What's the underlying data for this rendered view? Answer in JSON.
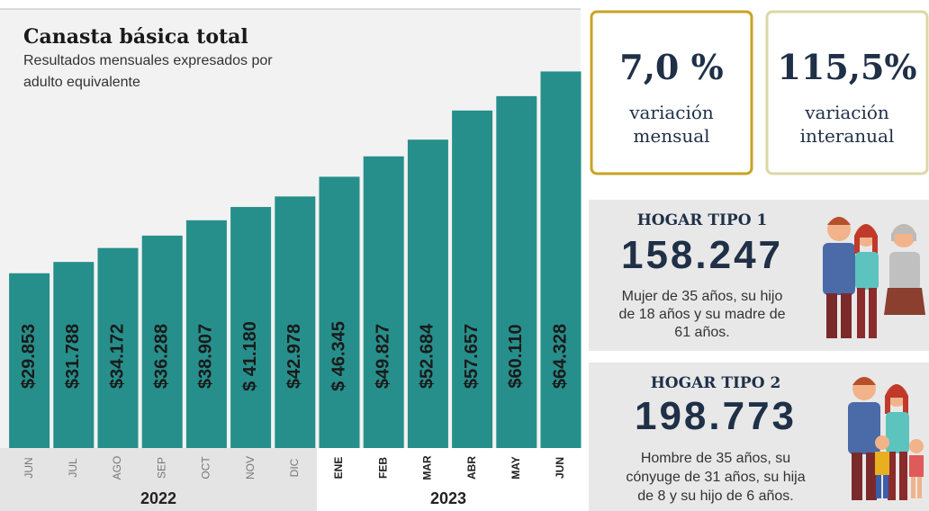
{
  "chart_data": {
    "type": "bar",
    "title": "Canasta básica total",
    "subtitle": [
      "Resultados mensuales expresados por",
      "adulto equivalente"
    ],
    "categories": [
      "JUN",
      "JUL",
      "AGO",
      "SEP",
      "OCT",
      "NOV",
      "DIC",
      "ENE",
      "FEB",
      "MAR",
      "ABR",
      "MAY",
      "JUN"
    ],
    "groups": [
      "2022",
      "2023"
    ],
    "values": [
      29853,
      31788,
      34172,
      36288,
      38907,
      41180,
      42978,
      46345,
      49827,
      52684,
      57657,
      60110,
      64328
    ],
    "value_labels": [
      "$29.853",
      "$31.788",
      "$34.172",
      "$36.288",
      "$38.907",
      "$ 41.180",
      "$42.978",
      "$ 46.345",
      "$49.827",
      "$52.684",
      "$57.657",
      "$60.110",
      "$64.328"
    ],
    "color": "#268f8b",
    "ylim": [
      0,
      75000
    ]
  },
  "cards": [
    {
      "value": "7,0 %",
      "label": [
        "variación",
        "mensual"
      ]
    },
    {
      "value": "115,5%",
      "label": [
        "variación",
        "interanual"
      ]
    }
  ],
  "households": [
    {
      "title": "HOGAR TIPO 1",
      "value": "158.247",
      "description": [
        "Mujer de 35 años, su hijo",
        "de 18 años y su madre de",
        "61 años."
      ]
    },
    {
      "title": "HOGAR TIPO 2",
      "value": "198.773",
      "description": [
        "Hombre de 35 años, su",
        "cónyuge de 31 años, su hija",
        "de 8 y su hijo de 6 años."
      ]
    }
  ]
}
